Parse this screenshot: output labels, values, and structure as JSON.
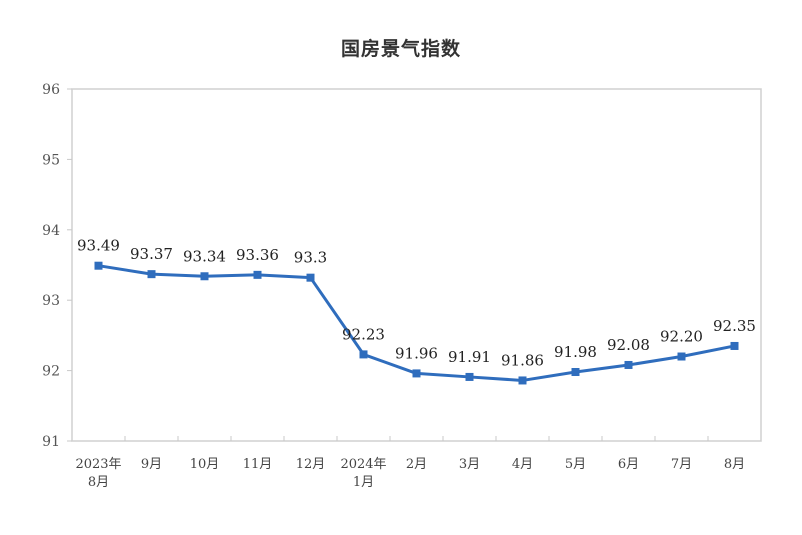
{
  "chart_data": {
    "type": "line",
    "title": "国房景气指数",
    "xlabel": "",
    "ylabel": "",
    "ylim": [
      91,
      96
    ],
    "yticks": [
      91,
      92,
      93,
      94,
      95,
      96
    ],
    "grid": false,
    "legend": null,
    "categories": [
      "2023年8月",
      "9月",
      "10月",
      "11月",
      "12月",
      "2024年1月",
      "2月",
      "3月",
      "4月",
      "5月",
      "6月",
      "7月",
      "8月"
    ],
    "category_lines": [
      [
        "2023年",
        "8月"
      ],
      [
        "9月"
      ],
      [
        "10月"
      ],
      [
        "11月"
      ],
      [
        "12月"
      ],
      [
        "2024年",
        "1月"
      ],
      [
        "2月"
      ],
      [
        "3月"
      ],
      [
        "4月"
      ],
      [
        "5月"
      ],
      [
        "6月"
      ],
      [
        "7月"
      ],
      [
        "8月"
      ]
    ],
    "series": [
      {
        "name": "国房景气指数",
        "color": "#2f6dbd",
        "values": [
          93.49,
          93.37,
          93.34,
          93.36,
          93.32,
          92.23,
          91.96,
          91.91,
          91.86,
          91.98,
          92.08,
          92.2,
          92.35
        ],
        "labels": [
          "93.49",
          "93.37",
          "93.34",
          "93.36",
          "93.3",
          "92.23",
          "91.96",
          "91.91",
          "91.86",
          "91.98",
          "92.08",
          "92.20",
          "92.35"
        ]
      }
    ]
  }
}
